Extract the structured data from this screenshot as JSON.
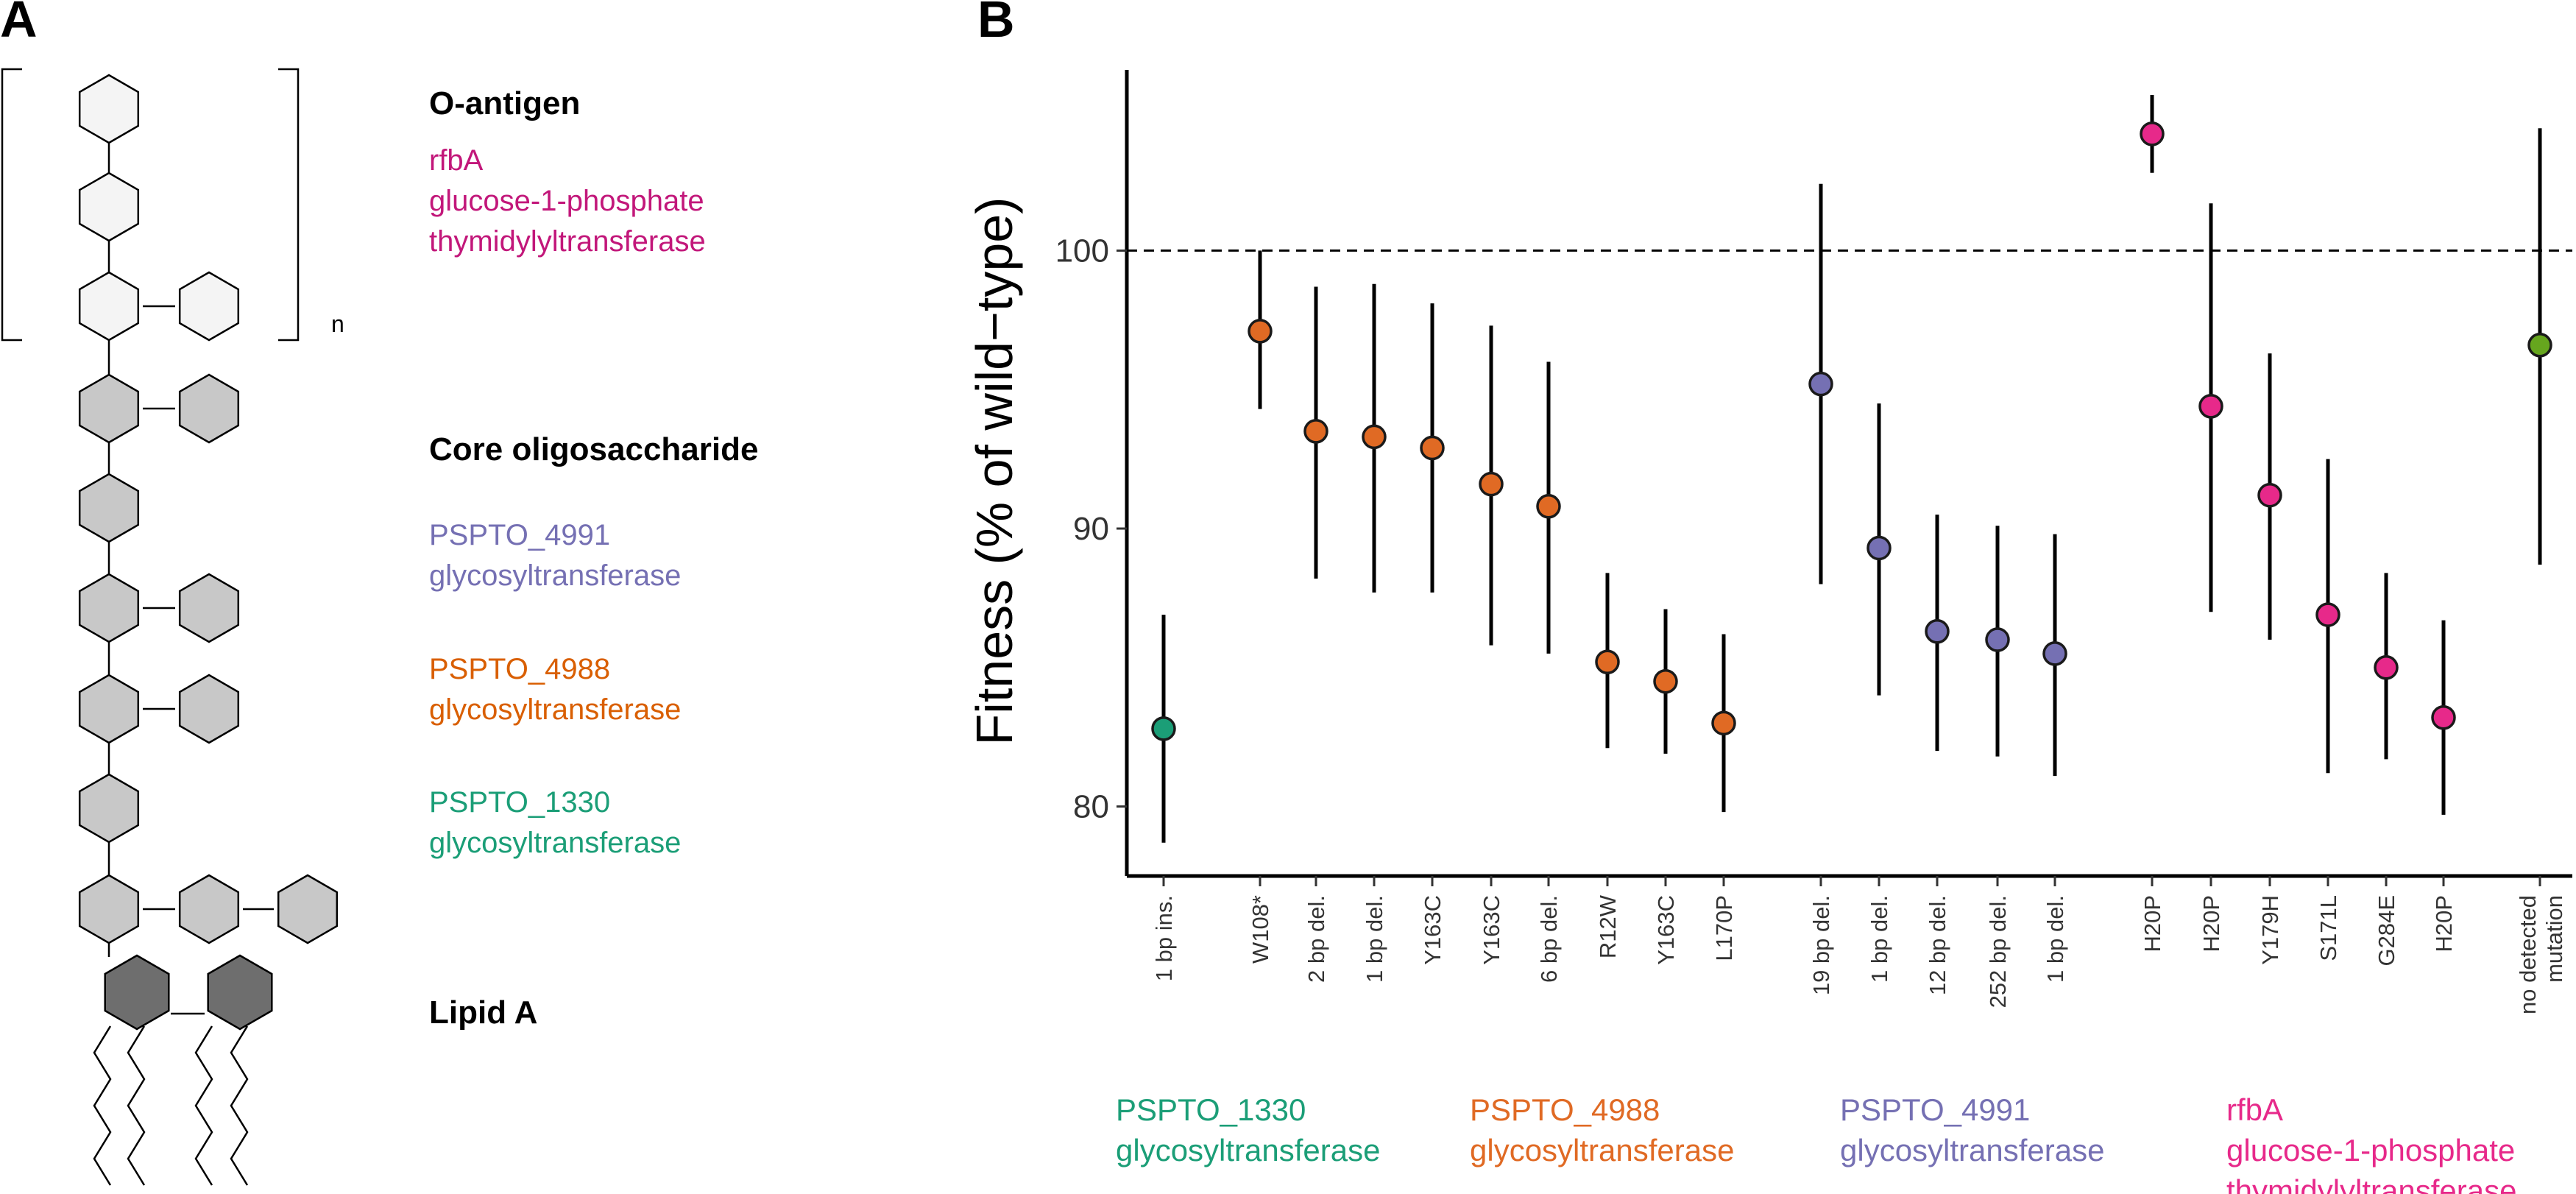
{
  "panel_a": {
    "letter": "A",
    "n_label": "n",
    "legend": [
      {
        "heading": "O-antigen",
        "lines": [
          "rfbA",
          "glucose-1-phosphate",
          "thymidylyltransferase"
        ],
        "color": "#c2177a"
      },
      {
        "heading": "Core oligosaccharide",
        "lines": [],
        "color": "#000000"
      },
      {
        "heading": "",
        "lines": [
          "PSPTO_4991",
          "glycosyltransferase"
        ],
        "color": "#7570b3"
      },
      {
        "heading": "",
        "lines": [
          "PSPTO_4988",
          "glycosyltransferase"
        ],
        "color": "#d95f02"
      },
      {
        "heading": "",
        "lines": [
          "PSPTO_1330",
          "glycosyltransferase"
        ],
        "color": "#1b9e77"
      },
      {
        "heading": "Lipid A",
        "lines": [],
        "color": "#000000"
      }
    ],
    "colors": {
      "o_antigen_sugar": "#f4f4f4",
      "core_sugar": "#c8c8c8",
      "lipid_sugar": "#6e6e6e"
    }
  },
  "chart_data": {
    "type": "scatter",
    "panel_letter": "B",
    "ylabel": "Fitness (% of wild−type)",
    "ylim": [
      77.5,
      106.5
    ],
    "yticks": [
      80,
      90,
      100
    ],
    "reference_line": 100,
    "colors": {
      "PSPTO_1330": "#1b9e77",
      "PSPTO_4988": "#e06a24",
      "PSPTO_4991": "#7570b3",
      "rfbA": "#e7298a",
      "none": "#66a61e"
    },
    "points": [
      {
        "label": "1 bp ins.",
        "group": "PSPTO_1330",
        "y": 82.8,
        "lo": 78.7,
        "hi": 86.9
      },
      {
        "label": "W108*",
        "group": "PSPTO_4988",
        "y": 97.1,
        "lo": 94.3,
        "hi": 100.0
      },
      {
        "label": "2 bp del.",
        "group": "PSPTO_4988",
        "y": 93.5,
        "lo": 88.2,
        "hi": 98.7
      },
      {
        "label": "1 bp del.",
        "group": "PSPTO_4988",
        "y": 93.3,
        "lo": 87.7,
        "hi": 98.8
      },
      {
        "label": "Y163C",
        "group": "PSPTO_4988",
        "y": 92.9,
        "lo": 87.7,
        "hi": 98.1
      },
      {
        "label": "Y163C",
        "group": "PSPTO_4988",
        "y": 91.6,
        "lo": 85.8,
        "hi": 97.3
      },
      {
        "label": "6 bp del.",
        "group": "PSPTO_4988",
        "y": 90.8,
        "lo": 85.5,
        "hi": 96.0
      },
      {
        "label": "R12W",
        "group": "PSPTO_4988",
        "y": 85.2,
        "lo": 82.1,
        "hi": 88.4
      },
      {
        "label": "Y163C",
        "group": "PSPTO_4988",
        "y": 84.5,
        "lo": 81.9,
        "hi": 87.1
      },
      {
        "label": "L170P",
        "group": "PSPTO_4988",
        "y": 83.0,
        "lo": 79.8,
        "hi": 86.2
      },
      {
        "label": "19 bp del.",
        "group": "PSPTO_4991",
        "y": 95.2,
        "lo": 88.0,
        "hi": 102.4
      },
      {
        "label": "1 bp del.",
        "group": "PSPTO_4991",
        "y": 89.3,
        "lo": 84.0,
        "hi": 94.5
      },
      {
        "label": "12 bp del.",
        "group": "PSPTO_4991",
        "y": 86.3,
        "lo": 82.0,
        "hi": 90.5
      },
      {
        "label": "252 bp del.",
        "group": "PSPTO_4991",
        "y": 86.0,
        "lo": 81.8,
        "hi": 90.1
      },
      {
        "label": "1 bp del.",
        "group": "PSPTO_4991",
        "y": 85.5,
        "lo": 81.1,
        "hi": 89.8
      },
      {
        "label": "H20P",
        "group": "rfbA",
        "y": 104.2,
        "lo": 102.8,
        "hi": 105.6
      },
      {
        "label": "H20P",
        "group": "rfbA",
        "y": 94.4,
        "lo": 87.0,
        "hi": 101.7
      },
      {
        "label": "Y179H",
        "group": "rfbA",
        "y": 91.2,
        "lo": 86.0,
        "hi": 96.3
      },
      {
        "label": "S171L",
        "group": "rfbA",
        "y": 86.9,
        "lo": 81.2,
        "hi": 92.5
      },
      {
        "label": "G284E",
        "group": "rfbA",
        "y": 85.0,
        "lo": 81.7,
        "hi": 88.4
      },
      {
        "label": "H20P",
        "group": "rfbA",
        "y": 83.2,
        "lo": 79.7,
        "hi": 86.7
      },
      {
        "label": "no detected\nmutation",
        "group": "none",
        "y": 96.6,
        "lo": 88.7,
        "hi": 104.4
      }
    ],
    "group_labels": [
      {
        "key": "PSPTO_1330",
        "lines": [
          "PSPTO_1330",
          "glycosyltransferase"
        ]
      },
      {
        "key": "PSPTO_4988",
        "lines": [
          "PSPTO_4988",
          "glycosyltransferase"
        ]
      },
      {
        "key": "PSPTO_4991",
        "lines": [
          "PSPTO_4991",
          "glycosyltransferase"
        ]
      },
      {
        "key": "rfbA",
        "lines": [
          "rfbA",
          "glucose-1-phosphate",
          "thymidylyltransferase"
        ]
      }
    ]
  }
}
